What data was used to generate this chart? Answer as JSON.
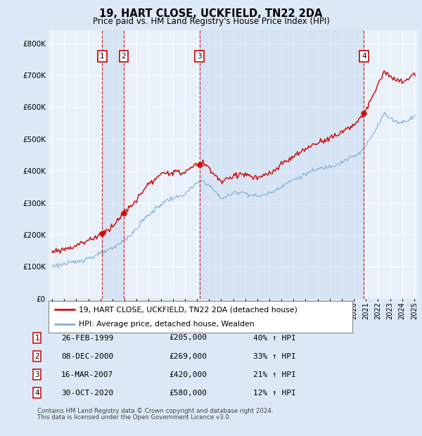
{
  "title": "19, HART CLOSE, UCKFIELD, TN22 2DA",
  "subtitle": "Price paid vs. HM Land Registry's House Price Index (HPI)",
  "legend_line1": "19, HART CLOSE, UCKFIELD, TN22 2DA (detached house)",
  "legend_line2": "HPI: Average price, detached house, Wealden",
  "footer1": "Contains HM Land Registry data © Crown copyright and database right 2024.",
  "footer2": "This data is licensed under the Open Government Licence v3.0.",
  "transactions": [
    {
      "num": 1,
      "date": "26-FEB-1999",
      "price": 205000,
      "pct": "40%",
      "year": 1999.15
    },
    {
      "num": 2,
      "date": "08-DEC-2000",
      "price": 269000,
      "pct": "33%",
      "year": 2000.93
    },
    {
      "num": 3,
      "date": "16-MAR-2007",
      "price": 420000,
      "pct": "21%",
      "year": 2007.21
    },
    {
      "num": 4,
      "date": "30-OCT-2020",
      "price": 580000,
      "pct": "12%",
      "year": 2020.83
    }
  ],
  "ylim": [
    0,
    840000
  ],
  "yticks": [
    0,
    100000,
    200000,
    300000,
    400000,
    500000,
    600000,
    700000,
    800000
  ],
  "hpi_color": "#7ab0d4",
  "price_color": "#cc1111",
  "bg_color": "#dce8f5",
  "plot_bg": "#e8f0fa",
  "grid_color": "#ffffff",
  "shade_color": "#c5d8ee",
  "transaction_line_color": "#cc1111",
  "box_color": "#cc1111",
  "dot_color": "#cc1111"
}
